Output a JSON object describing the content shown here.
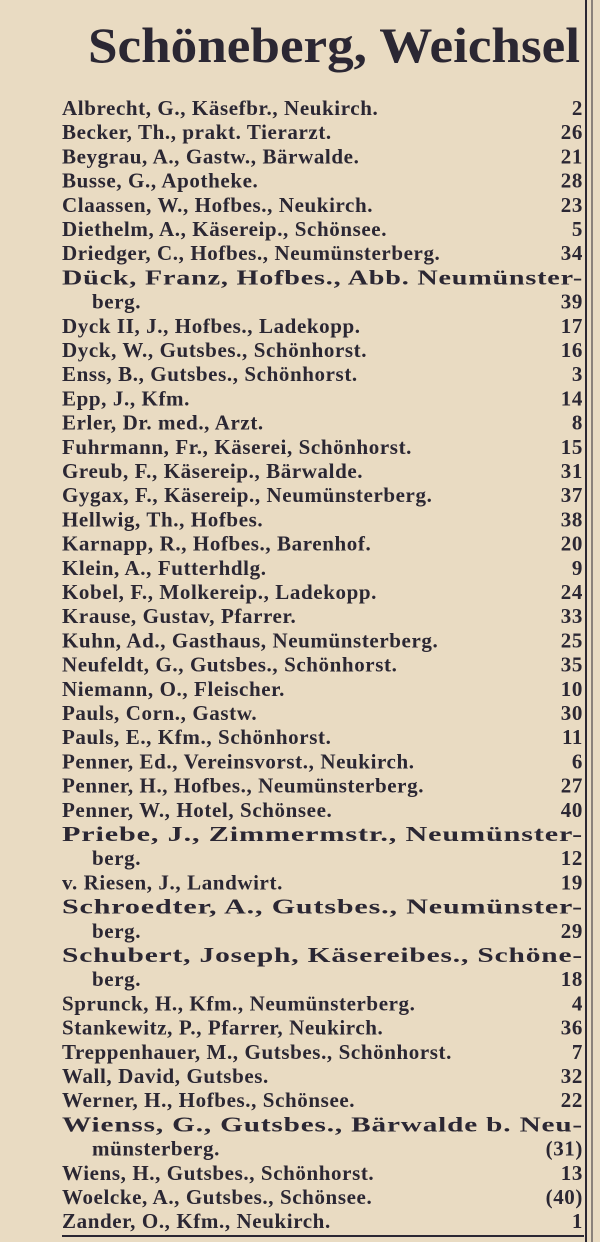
{
  "title": "Schöneberg, Weichsel",
  "entries": [
    {
      "lines": [
        "Albrecht, G., Käsefbr., Neukirch."
      ],
      "number": "2"
    },
    {
      "lines": [
        "Becker, Th., prakt. Tierarzt."
      ],
      "number": "26"
    },
    {
      "lines": [
        "Beygrau, A., Gastw., Bärwalde."
      ],
      "number": "21"
    },
    {
      "lines": [
        "Busse, G., Apotheke."
      ],
      "number": "28"
    },
    {
      "lines": [
        "Claassen, W., Hofbes., Neukirch."
      ],
      "number": "23"
    },
    {
      "lines": [
        "Diethelm, A., Käsereip., Schönsee."
      ],
      "number": "5"
    },
    {
      "lines": [
        "Driedger, C., Hofbes., Neumünsterberg."
      ],
      "number": "34"
    },
    {
      "lines": [
        "Dück, Franz, Hofbes., Abb. Neumünster-",
        "berg."
      ],
      "number": "39"
    },
    {
      "lines": [
        "Dyck II, J., Hofbes., Ladekopp."
      ],
      "number": "17"
    },
    {
      "lines": [
        "Dyck, W., Gutsbes., Schönhorst."
      ],
      "number": "16"
    },
    {
      "lines": [
        "Enss, B., Gutsbes., Schönhorst."
      ],
      "number": "3"
    },
    {
      "lines": [
        "Epp, J., Kfm."
      ],
      "number": "14"
    },
    {
      "lines": [
        "Erler, Dr. med., Arzt."
      ],
      "number": "8"
    },
    {
      "lines": [
        "Fuhrmann, Fr., Käserei, Schönhorst."
      ],
      "number": "15"
    },
    {
      "lines": [
        "Greub, F., Käsereip., Bärwalde."
      ],
      "number": "31"
    },
    {
      "lines": [
        "Gygax, F., Käsereip., Neumünsterberg."
      ],
      "number": "37"
    },
    {
      "lines": [
        "Hellwig, Th., Hofbes."
      ],
      "number": "38"
    },
    {
      "lines": [
        "Karnapp, R., Hofbes., Barenhof."
      ],
      "number": "20"
    },
    {
      "lines": [
        "Klein, A., Futterhdlg."
      ],
      "number": "9"
    },
    {
      "lines": [
        "Kobel, F., Molkereip., Ladekopp."
      ],
      "number": "24"
    },
    {
      "lines": [
        "Krause, Gustav, Pfarrer."
      ],
      "number": "33"
    },
    {
      "lines": [
        "Kuhn, Ad., Gasthaus, Neumünsterberg."
      ],
      "number": "25"
    },
    {
      "lines": [
        "Neufeldt, G., Gutsbes., Schönhorst."
      ],
      "number": "35"
    },
    {
      "lines": [
        "Niemann, O., Fleischer."
      ],
      "number": "10"
    },
    {
      "lines": [
        "Pauls, Corn., Gastw."
      ],
      "number": "30"
    },
    {
      "lines": [
        "Pauls, E., Kfm., Schönhorst."
      ],
      "number": "11"
    },
    {
      "lines": [
        "Penner, Ed., Vereinsvorst., Neukirch."
      ],
      "number": "6"
    },
    {
      "lines": [
        "Penner, H., Hofbes., Neumünsterberg."
      ],
      "number": "27"
    },
    {
      "lines": [
        "Penner, W., Hotel, Schönsee."
      ],
      "number": "40"
    },
    {
      "lines": [
        "Priebe, J., Zimmermstr., Neumünster-",
        "berg."
      ],
      "number": "12"
    },
    {
      "lines": [
        "v. Riesen, J., Landwirt."
      ],
      "number": "19"
    },
    {
      "lines": [
        "Schroedter, A., Gutsbes., Neumünster-",
        "berg."
      ],
      "number": "29"
    },
    {
      "lines": [
        "Schubert, Joseph, Käsereibes., Schöne-",
        "berg."
      ],
      "number": "18"
    },
    {
      "lines": [
        "Sprunck, H., Kfm., Neumünsterberg."
      ],
      "number": "4"
    },
    {
      "lines": [
        "Stankewitz, P., Pfarrer, Neukirch."
      ],
      "number": "36"
    },
    {
      "lines": [
        "Treppenhauer, M., Gutsbes., Schönhorst."
      ],
      "number": "7"
    },
    {
      "lines": [
        "Wall, David, Gutsbes."
      ],
      "number": "32"
    },
    {
      "lines": [
        "Werner, H., Hofbes., Schönsee."
      ],
      "number": "22"
    },
    {
      "lines": [
        "Wienss, G., Gutsbes., Bärwalde b. Neu-",
        "münsterberg."
      ],
      "number": "(31)"
    },
    {
      "lines": [
        "Wiens, H., Gutsbes., Schönhorst."
      ],
      "number": "13"
    },
    {
      "lines": [
        "Woelcke, A., Gutsbes., Schönsee."
      ],
      "number": "(40)"
    },
    {
      "lines": [
        "Zander, O., Kfm., Neukirch."
      ],
      "number": "1"
    }
  ]
}
